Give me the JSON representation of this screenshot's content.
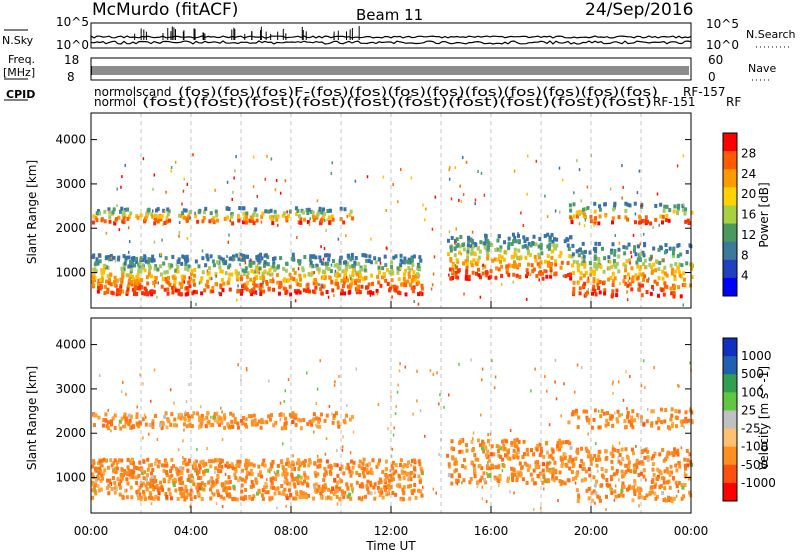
{
  "header": {
    "station": "McMurdo (fitACF)",
    "beam": "Beam 11",
    "date": "24/Sep/2016"
  },
  "top_panel": {
    "left_label": "N.Sky",
    "left_tick_hi": "10^5",
    "left_tick_lo": "10^0",
    "right_tick_hi": "10^5",
    "right_tick_lo": "10^0",
    "right_label": "N.Search",
    "freq_label_1": "Freq.",
    "freq_label_2": "[MHz]",
    "freq_tick_hi": "18",
    "freq_tick_lo": "8",
    "nave_tick_hi": "60",
    "nave_tick_lo": "0",
    "nave_label": "Nave",
    "cpid_label": "CPID",
    "cpid_text_row1": "normolscand",
    "cpid_text_row2": "normol",
    "cpid_tail_1": "RF-157",
    "cpid_tail_2": "RF-151",
    "cpid_tail_3": "RF",
    "cpid_garble_row1": "(fos)(fos)(fos)F-(fos)(fos)(fos)(fos)(fos)(fos)(fos)(fos)(fos)",
    "cpid_garble_row2": "(fost)(fost)(fost)(fost)(fost)(fost)(fost)(fost)(fost)(fost)"
  },
  "chart_data": [
    {
      "type": "heatmap",
      "name": "Power",
      "ylabel": "Slant Range [km]",
      "yticks": [
        1000,
        2000,
        3000,
        4000
      ],
      "ylim": [
        200,
        4600
      ],
      "xlim_hours": [
        0,
        24
      ],
      "colorbar_label": "Power [dB]",
      "colorbar_ticks": [
        "28",
        "24",
        "20",
        "16",
        "12",
        "8",
        "4"
      ],
      "colorbar_colors": [
        "#ff0000",
        "#ff5a00",
        "#ff9a00",
        "#ffd200",
        "#a8d040",
        "#4a9a60",
        "#3a7a9a",
        "#2040c0",
        "#0000ff"
      ]
    },
    {
      "type": "heatmap",
      "name": "Velocity",
      "ylabel": "Slant Range [km]",
      "yticks": [
        1000,
        2000,
        3000,
        4000
      ],
      "ylim": [
        200,
        4600
      ],
      "xlim_hours": [
        0,
        24
      ],
      "xlabel": "Time UT",
      "xticks": [
        "00:00",
        "04:00",
        "08:00",
        "12:00",
        "16:00",
        "20:00",
        "00:00"
      ],
      "colorbar_label": "Velocity [m s^-1]",
      "colorbar_ticks": [
        "1000",
        "500",
        "100",
        "25",
        "-25",
        "-100",
        "-500",
        "-1000"
      ],
      "colorbar_colors": [
        "#1030c0",
        "#2060b0",
        "#30a050",
        "#60c840",
        "#c0c0c0",
        "#ffc070",
        "#ff9020",
        "#ff5010",
        "#ff0000"
      ]
    }
  ]
}
